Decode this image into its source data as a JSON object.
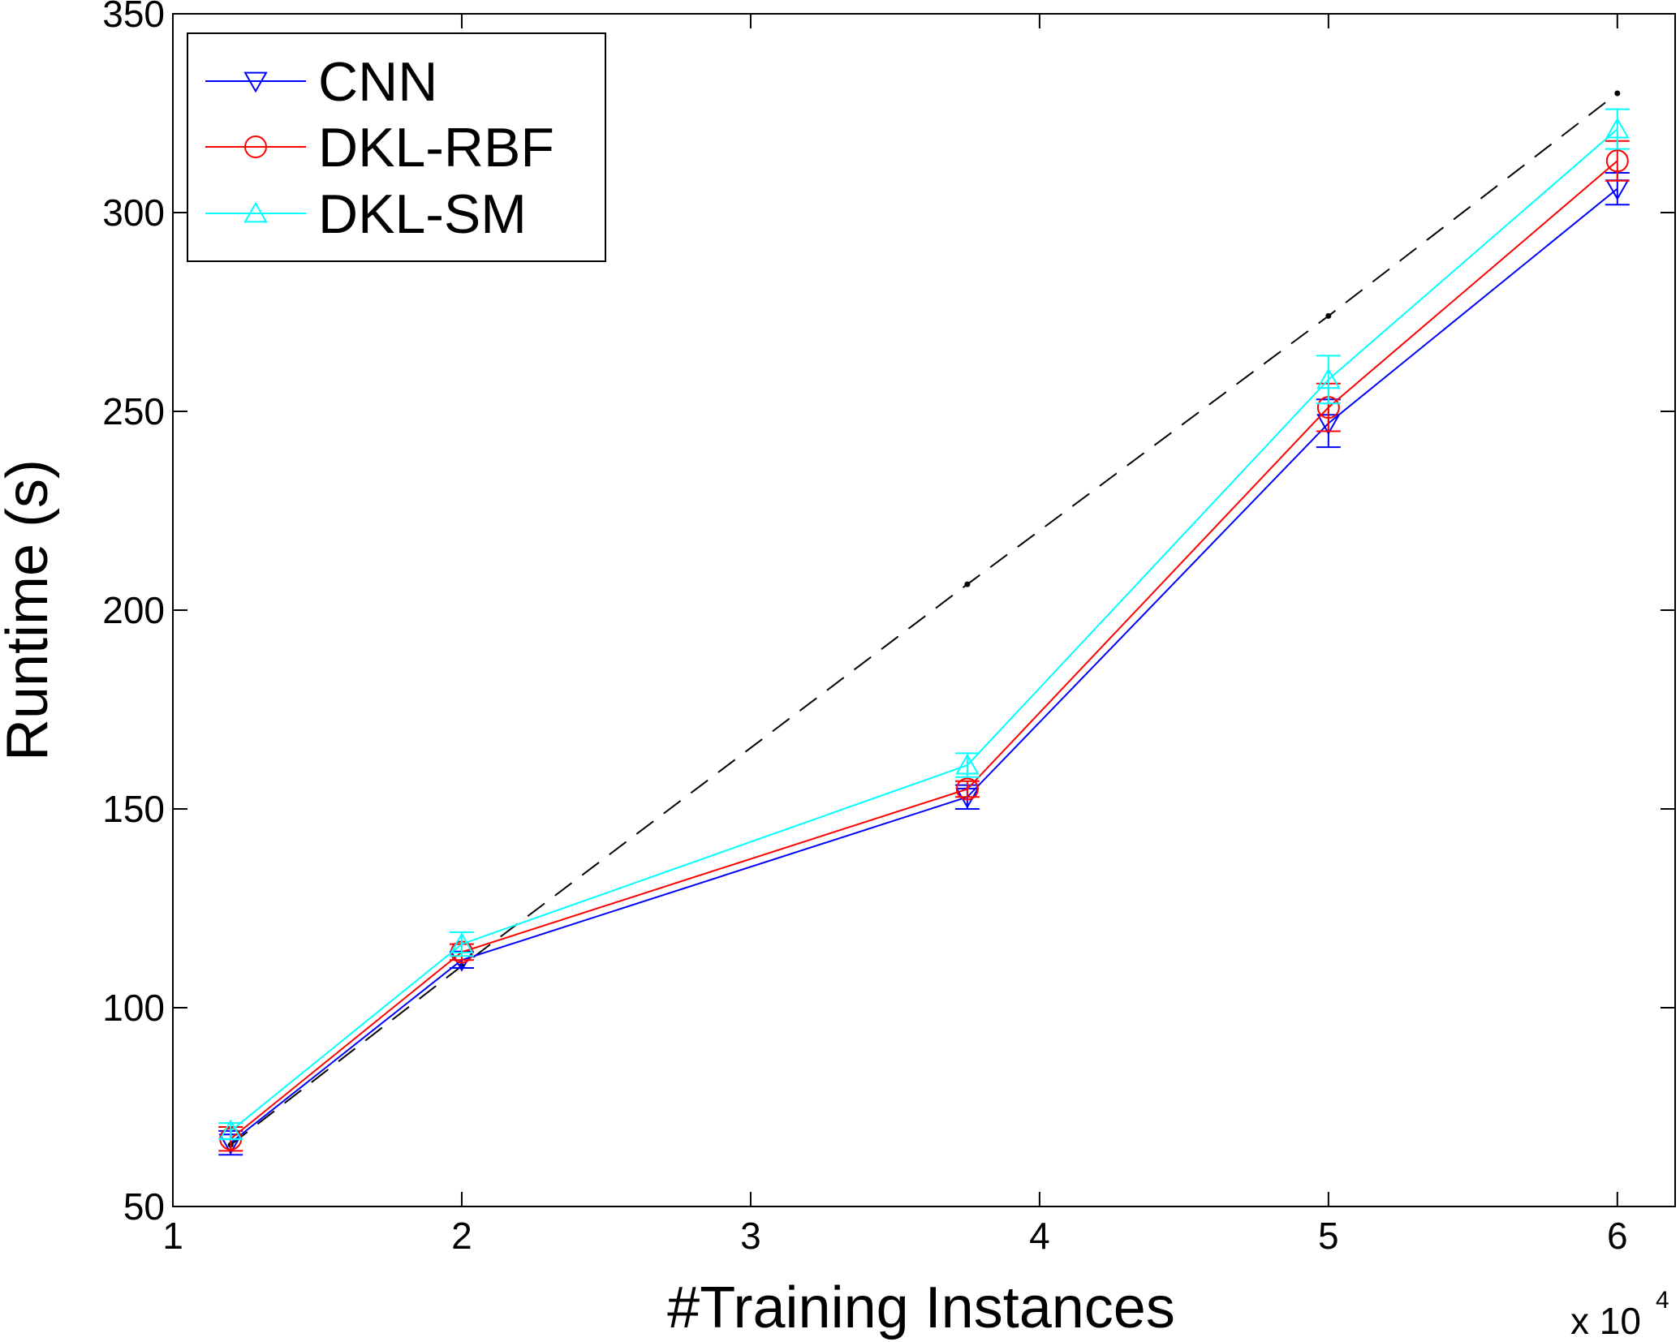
{
  "chart_data": {
    "type": "line",
    "xlabel": "#Training Instances",
    "ylabel": "Runtime (s)",
    "x_exponent_label": "x 10",
    "x_exponent_power": "4",
    "xlim": [
      1,
      6.2
    ],
    "ylim": [
      50,
      350
    ],
    "x_ticks": [
      1,
      2,
      3,
      4,
      5,
      6
    ],
    "y_ticks": [
      50,
      100,
      150,
      200,
      250,
      300,
      350
    ],
    "x_tick_labels": [
      "1",
      "2",
      "3",
      "4",
      "5",
      "6"
    ],
    "y_tick_labels": [
      "50",
      "100",
      "150",
      "200",
      "250",
      "300",
      "350"
    ],
    "x": [
      1.2,
      2.0,
      3.75,
      5.0,
      6.0
    ],
    "grid": false,
    "legend_position": "top-left",
    "series": [
      {
        "name": "CNN",
        "color": "#0000ff",
        "marker": "triangle-down",
        "values": [
          66,
          112,
          153,
          247,
          306
        ],
        "errors": [
          3,
          2,
          3,
          6,
          4
        ]
      },
      {
        "name": "DKL-RBF",
        "color": "#ff0000",
        "marker": "circle",
        "values": [
          67,
          114,
          155,
          251,
          313
        ],
        "errors": [
          3,
          2,
          2,
          6,
          5
        ]
      },
      {
        "name": "DKL-SM",
        "color": "#00ffff",
        "marker": "triangle-up",
        "values": [
          69,
          116,
          161,
          258,
          321
        ],
        "errors": [
          2,
          3,
          3,
          6,
          5
        ]
      }
    ],
    "reference_line": {
      "color": "#000000",
      "style": "dashed",
      "values": [
        65.5,
        110.5,
        206.5,
        274,
        330
      ]
    }
  }
}
